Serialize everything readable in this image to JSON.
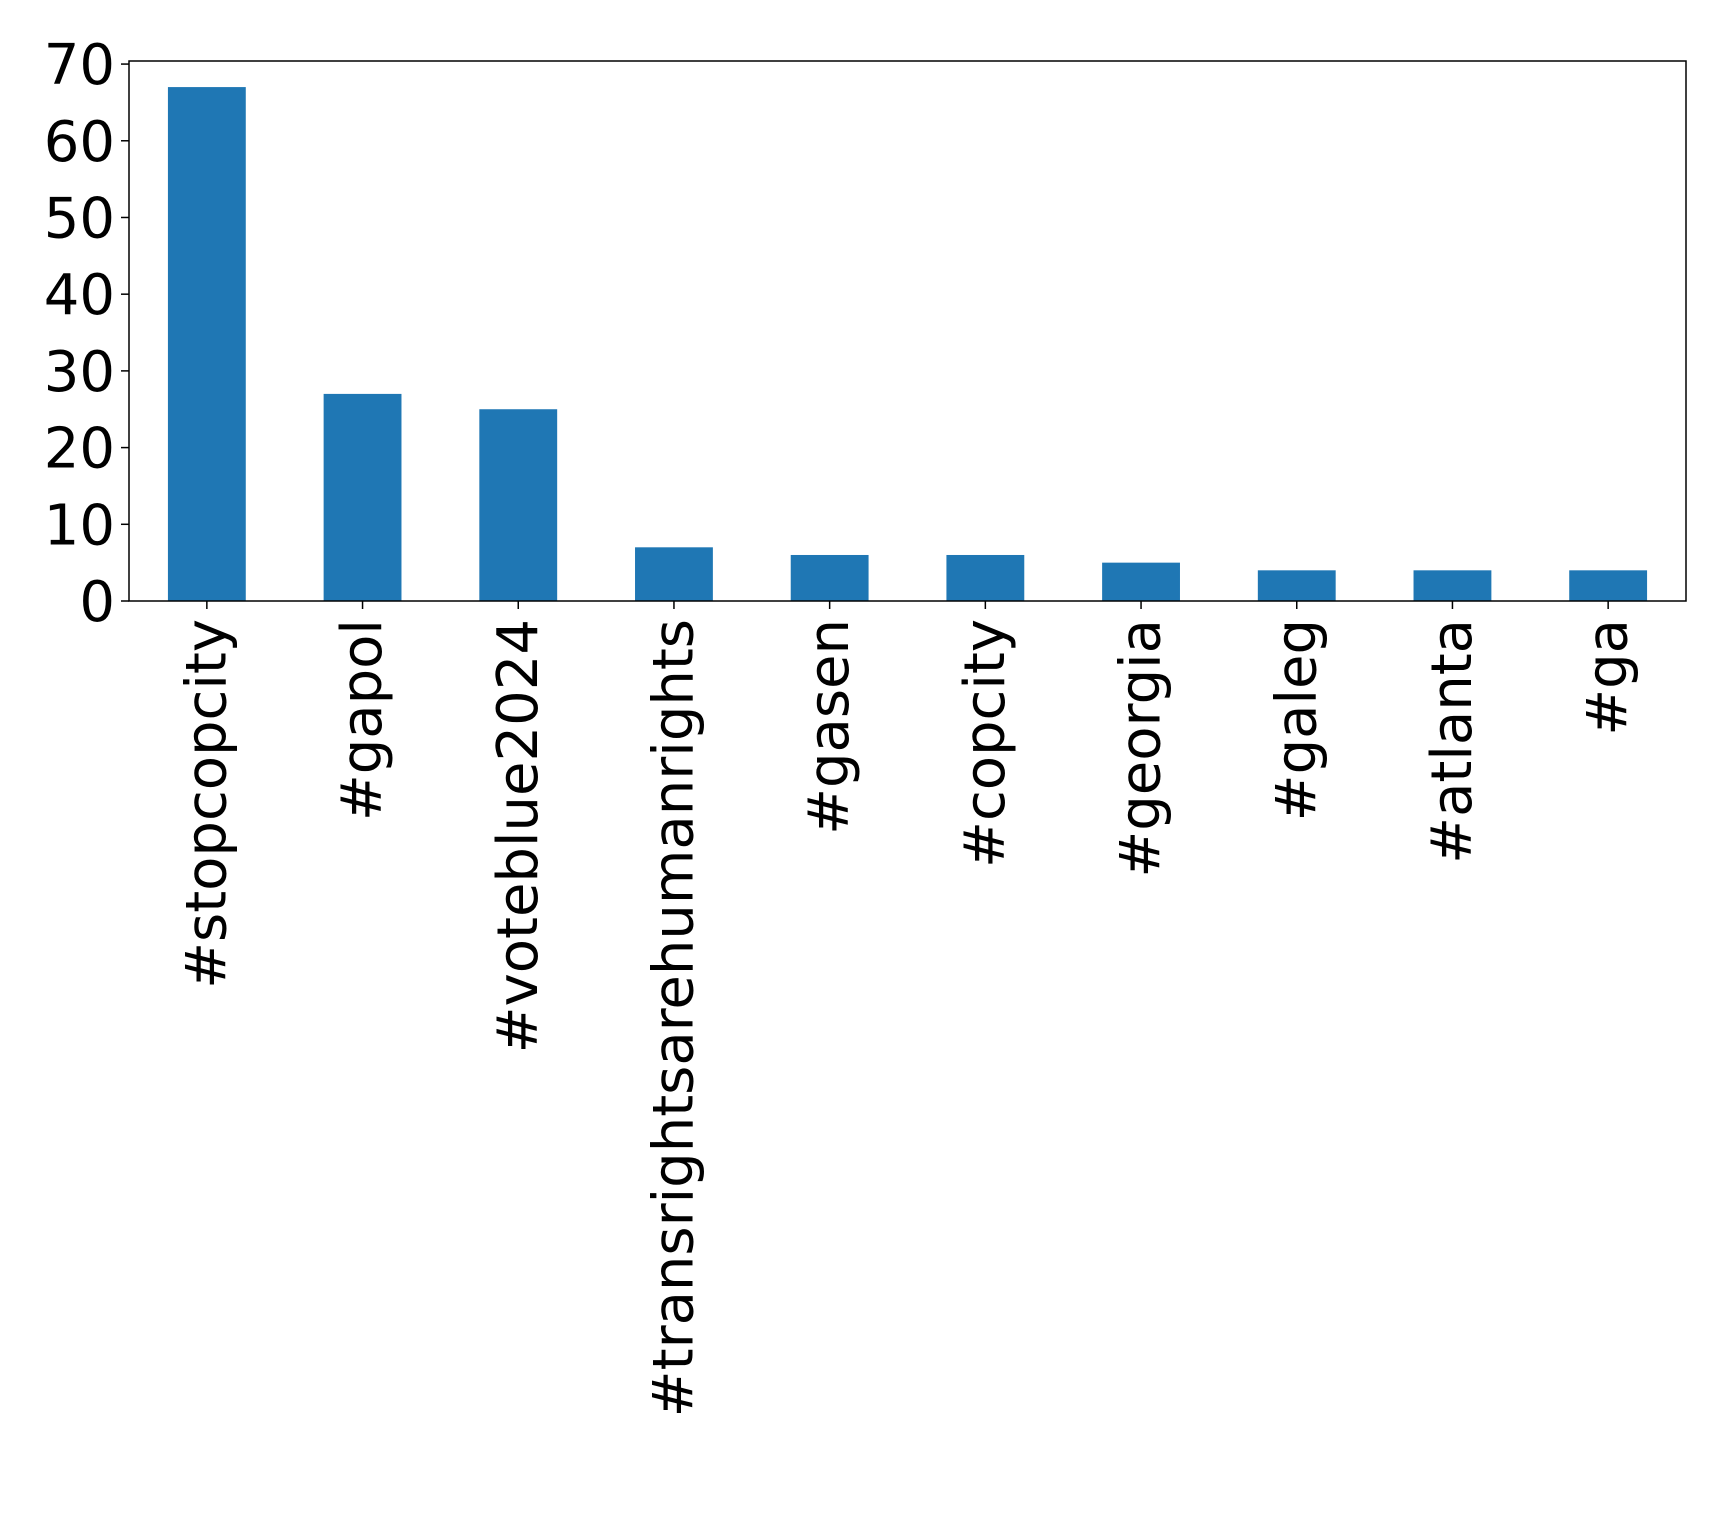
{
  "chart_data": {
    "type": "bar",
    "title": "",
    "xlabel": "",
    "ylabel": "",
    "categories": [
      "#stopcopcity",
      "#gapol",
      "#voteblue2024",
      "#transrightsarehumanrights",
      "#gasen",
      "#copcity",
      "#georgia",
      "#galeg",
      "#atlanta",
      "#ga"
    ],
    "values": [
      67,
      27,
      25,
      7,
      6,
      6,
      5,
      4,
      4,
      4
    ],
    "yticks": [
      "0",
      "10",
      "20",
      "30",
      "40",
      "50",
      "60",
      "70"
    ],
    "ylim": [
      0,
      70.4
    ],
    "grid": false,
    "legend": "none",
    "colors": {
      "bar": "#1f77b4",
      "axis": "#000000"
    }
  }
}
